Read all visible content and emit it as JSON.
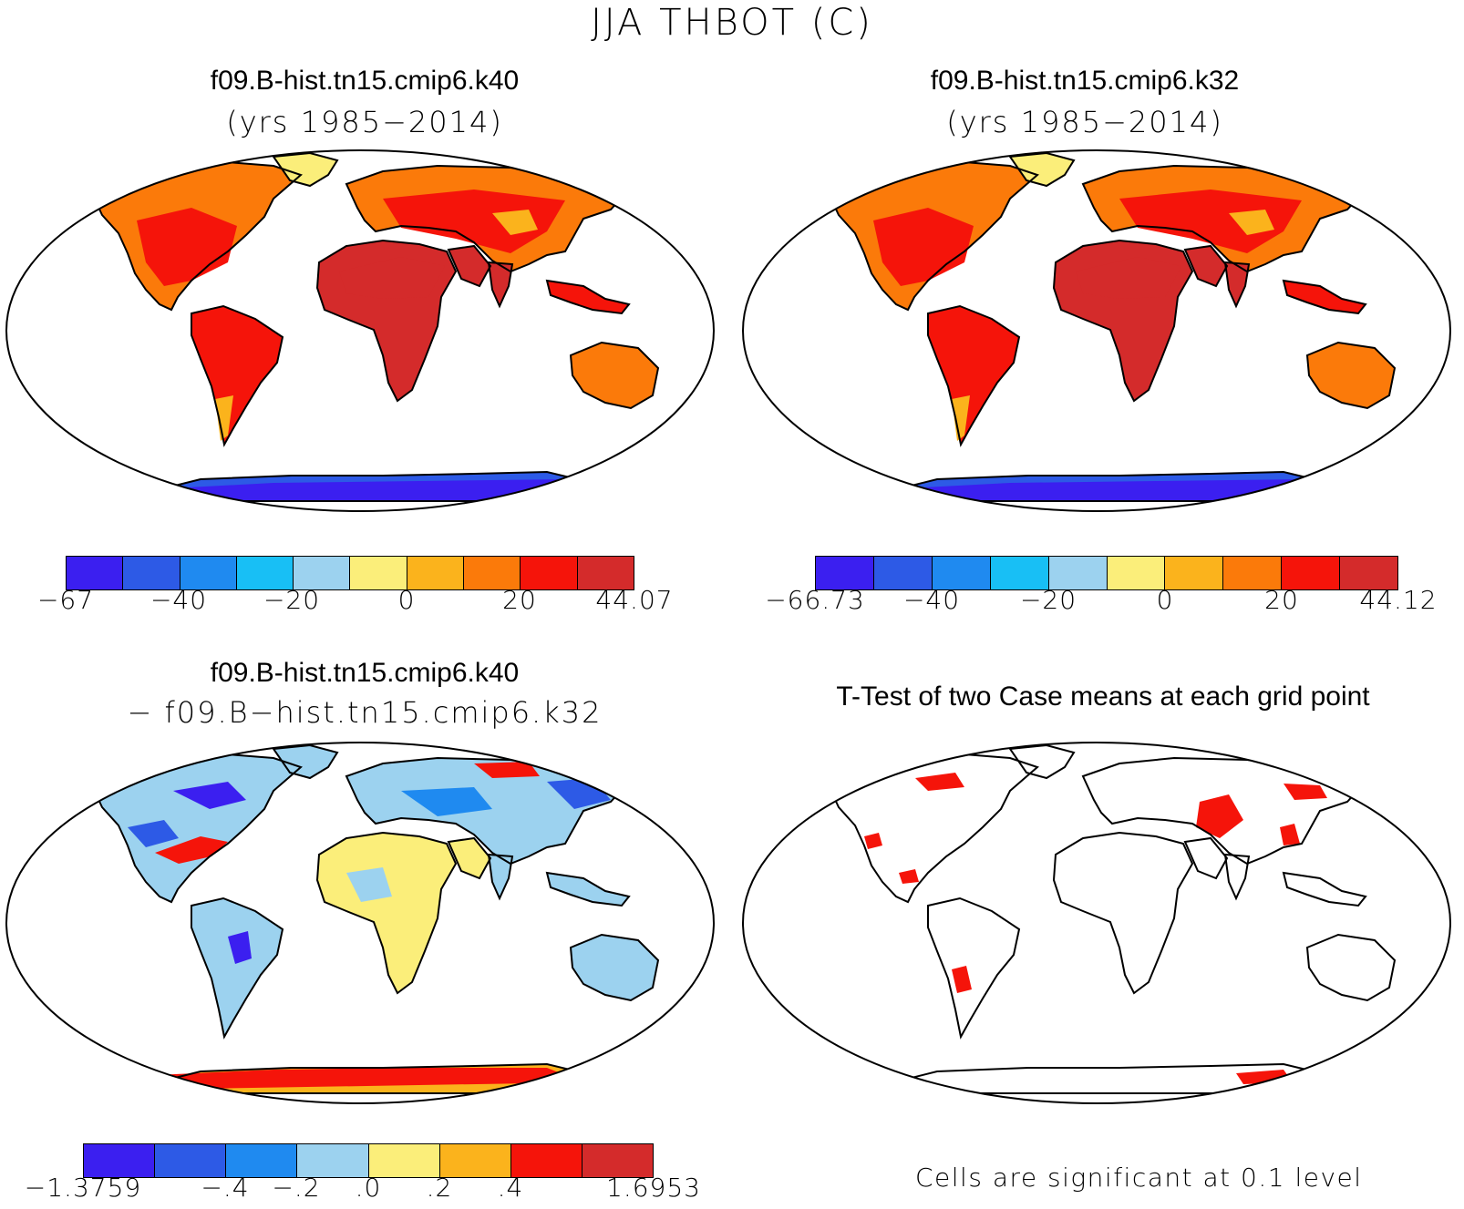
{
  "page_title": "JJA THBOT (C)",
  "panels": [
    {
      "title": "f09.B-hist.tn15.cmip6.k40",
      "subtitle": "(yrs 1985−2014)",
      "colorbar": {
        "colors": [
          "#3b1ff0",
          "#2d5ae6",
          "#1f8af0",
          "#18bff5",
          "#9cd2ef",
          "#fbee7a",
          "#fbb31c",
          "#fb7a0a",
          "#f5140a",
          "#d42b2b"
        ],
        "tick_labels": [
          "−67",
          "−40",
          "−20",
          "0",
          "20",
          "44.07"
        ]
      }
    },
    {
      "title": "f09.B-hist.tn15.cmip6.k32",
      "subtitle": "(yrs 1985−2014)",
      "colorbar": {
        "colors": [
          "#3b1ff0",
          "#2d5ae6",
          "#1f8af0",
          "#18bff5",
          "#9cd2ef",
          "#fbee7a",
          "#fbb31c",
          "#fb7a0a",
          "#f5140a",
          "#d42b2b"
        ],
        "tick_labels": [
          "−66.73",
          "−40",
          "−20",
          "0",
          "20",
          "44.12"
        ]
      }
    },
    {
      "title": "f09.B-hist.tn15.cmip6.k40",
      "subtitle": "− f09.B−hist.tn15.cmip6.k32",
      "colorbar": {
        "colors": [
          "#3b1ff0",
          "#2d5ae6",
          "#1f8af0",
          "#9cd2ef",
          "#fbee7a",
          "#fbb31c",
          "#f5140a",
          "#d42b2b"
        ],
        "tick_labels": [
          "−1.3759",
          "−.4",
          "−.2",
          ".0",
          ".2",
          ".4",
          "1.6953"
        ]
      }
    },
    {
      "title": "T-Test of two Case means at each grid point",
      "footnote": "Cells are significant at 0.1 level"
    }
  ],
  "colors": {
    "ocean": "#ffffff",
    "coast": "#000000",
    "significant": "#f5140a"
  }
}
